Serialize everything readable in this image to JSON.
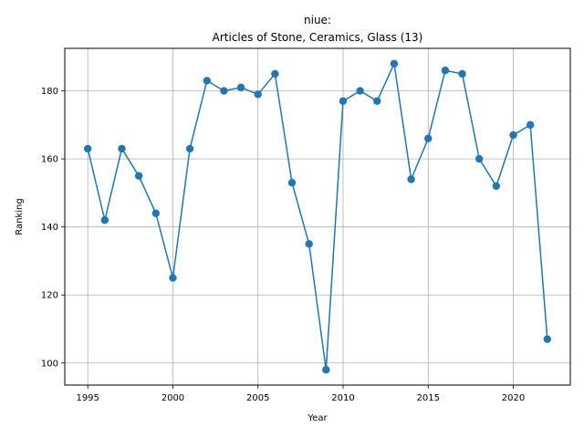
{
  "chart_data": {
    "type": "line",
    "title_line1": "niue:",
    "title_line2": "Articles of Stone, Ceramics, Glass (13)",
    "xlabel": "Year",
    "ylabel": "Ranking",
    "xlim": [
      1993.65,
      2023.35
    ],
    "ylim": [
      93.5,
      192.5
    ],
    "xticks": [
      1995,
      2000,
      2005,
      2010,
      2015,
      2020
    ],
    "yticks": [
      100,
      120,
      140,
      160,
      180
    ],
    "grid": true,
    "line_color": "#1f77b4",
    "series": [
      {
        "x": [
          1995,
          1996,
          1997,
          1998,
          1999,
          2000,
          2001,
          2002,
          2003,
          2004,
          2005,
          2006,
          2007,
          2008,
          2009,
          2010,
          2011,
          2012,
          2013,
          2014,
          2015,
          2016,
          2017,
          2018,
          2019,
          2020,
          2021,
          2022
        ],
        "y": [
          163,
          142,
          163,
          155,
          144,
          125,
          163,
          183,
          180,
          181,
          179,
          185,
          153,
          135,
          98,
          177,
          180,
          177,
          188,
          154,
          166,
          186,
          185,
          160,
          152,
          167,
          170,
          107
        ]
      }
    ]
  }
}
